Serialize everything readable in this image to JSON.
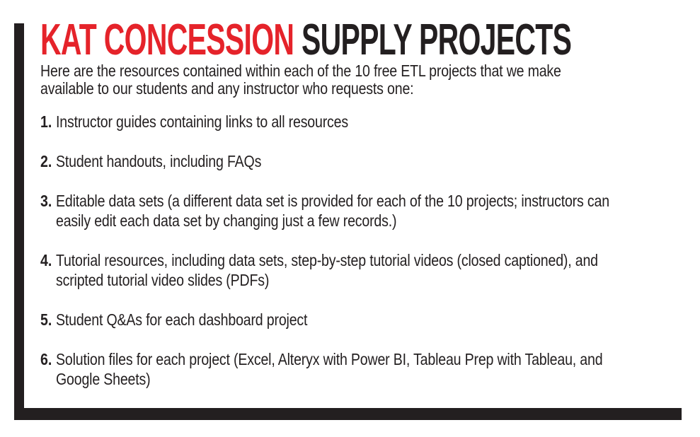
{
  "colors": {
    "accent_red": "#e5232a",
    "ink_black": "#231f20",
    "background": "#ffffff"
  },
  "title": {
    "highlight": "KAT CONCESSION",
    "rest": " SUPPLY PROJECTS"
  },
  "intro": {
    "line1": "Here are the resources contained within each of the 10 free ETL projects that we make",
    "line2": "available to our students and any instructor who requests one:"
  },
  "list": {
    "items": [
      {
        "number": "1.",
        "line1": "Instructor guides containing links to all resources"
      },
      {
        "number": "2.",
        "line1": "Student handouts, including FAQs"
      },
      {
        "number": "3.",
        "line1": "Editable data sets (a different data set is provided for each of the 10 projects; instructors can",
        "line2": "easily edit each data set by changing just a few records.)"
      },
      {
        "number": "4.",
        "line1": "Tutorial resources, including data sets, step-by-step tutorial videos (closed captioned), and",
        "line2": "scripted tutorial video slides (PDFs)"
      },
      {
        "number": "5.",
        "line1": "Student Q&As for each dashboard project"
      },
      {
        "number": "6.",
        "line1": "Solution files for each project (Excel, Alteryx with Power BI, Tableau Prep with Tableau, and",
        "line2": "Google Sheets)"
      }
    ]
  }
}
